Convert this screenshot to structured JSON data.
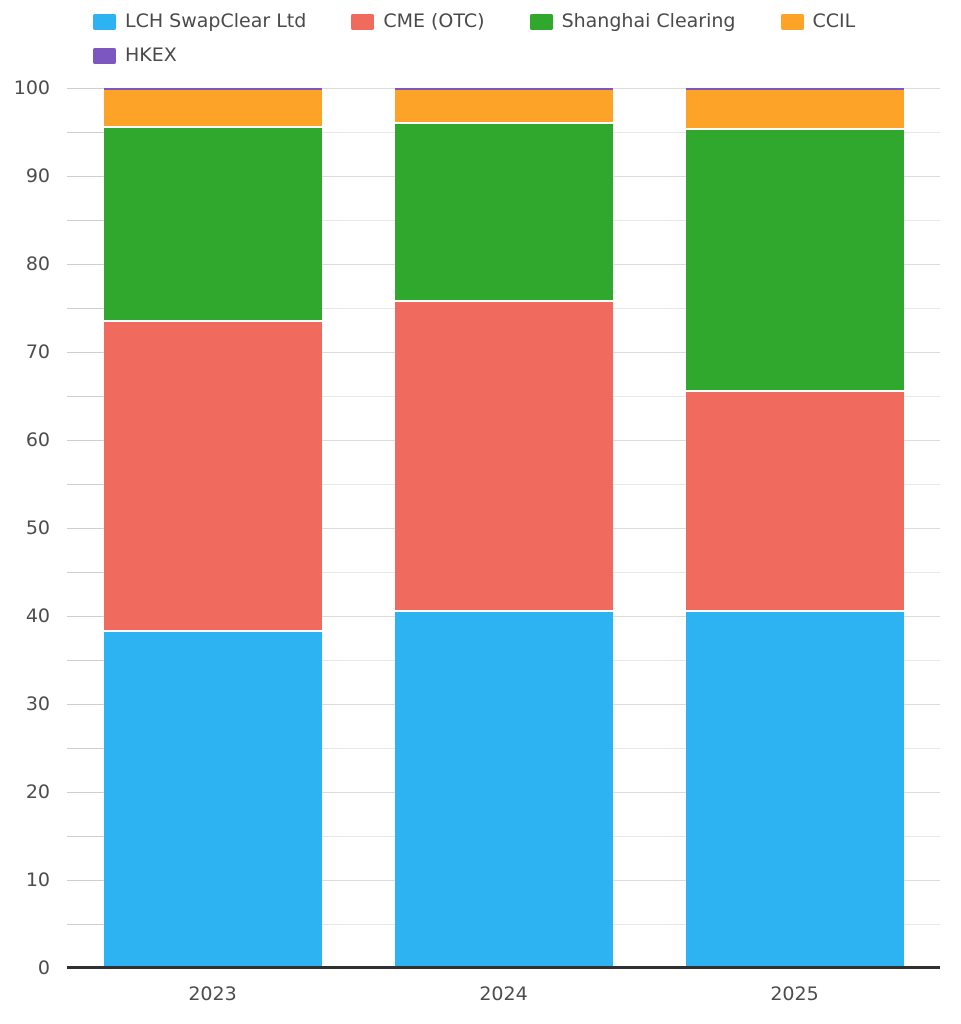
{
  "chart_data": {
    "type": "bar",
    "stacked": true,
    "stack_total": 100,
    "title": "",
    "xlabel": "",
    "ylabel": "",
    "categories": [
      "2023",
      "2024",
      "2025"
    ],
    "series": [
      {
        "name": "LCH SwapClear Ltd",
        "color": "#2db2f2",
        "values": [
          38.2,
          40.4,
          40.4
        ]
      },
      {
        "name": "CME (OTC)",
        "color": "#f06a5e",
        "values": [
          35.2,
          35.3,
          25.1
        ]
      },
      {
        "name": "Shanghai Clearing",
        "color": "#2fa82d",
        "values": [
          22.1,
          20.2,
          29.7
        ]
      },
      {
        "name": "CCIL",
        "color": "#fda428",
        "values": [
          4.3,
          3.9,
          4.6
        ]
      },
      {
        "name": "HKEX",
        "color": "#7d57c1",
        "values": [
          0.2,
          0.2,
          0.2
        ]
      }
    ],
    "ylim": [
      0,
      100
    ],
    "y_major_step": 10,
    "y_minor_step": 5,
    "y_tick_labels": [
      "0",
      "10",
      "20",
      "30",
      "40",
      "50",
      "60",
      "70",
      "80",
      "90",
      "100"
    ],
    "grid": true,
    "legend_position": "top"
  }
}
